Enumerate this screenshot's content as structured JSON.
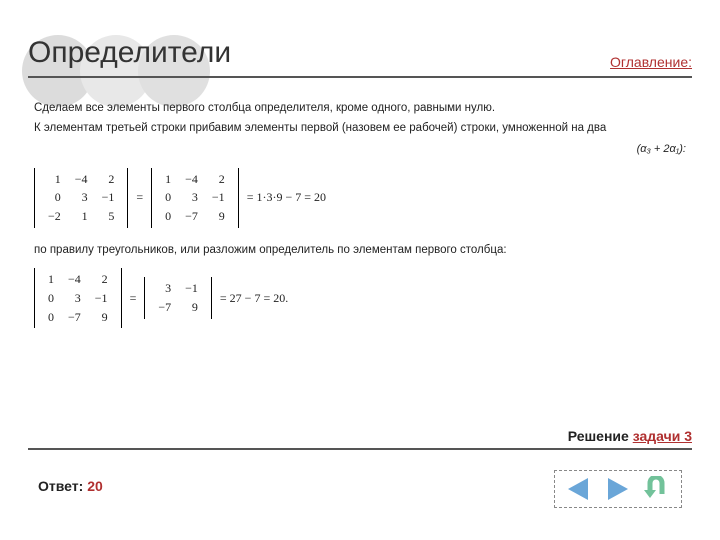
{
  "colors": {
    "accent": "#b03030",
    "rule": "#555555",
    "circle1": "#dcdcdc",
    "circle2": "#e8e8e8",
    "circle3": "#e0e0e0",
    "nav_arrow": "#6aa6d8",
    "nav_uturn": "#72c29a"
  },
  "header": {
    "title": "Определители",
    "toc_label": "Оглавление:"
  },
  "body": {
    "para1": "Сделаем все элементы первого столбца определителя, кроме одного, равными нулю.",
    "para2": "К элементам третьей строки прибавим элементы первой (назовем ее рабочей) строки, умноженной на два",
    "row_op_note": "(α₃ + 2α₁):",
    "det1": [
      [
        "1",
        "−4",
        "2"
      ],
      [
        "0",
        "3",
        "−1"
      ],
      [
        "−2",
        "1",
        "5"
      ]
    ],
    "det2": [
      [
        "1",
        "−4",
        "2"
      ],
      [
        "0",
        "3",
        "−1"
      ],
      [
        "0",
        "−7",
        "9"
      ]
    ],
    "calc1_tail": "= 1·3·9 − 7 = 20",
    "para3": "по правилу треугольников, или разложим определитель по элементам первого столбца:",
    "det3": [
      [
        "1",
        "−4",
        "2"
      ],
      [
        "0",
        "3",
        "−1"
      ],
      [
        "0",
        "−7",
        "9"
      ]
    ],
    "det4": [
      [
        "3",
        "−1"
      ],
      [
        "−7",
        "9"
      ]
    ],
    "calc2_tail": "= 27 − 7 = 20."
  },
  "footer": {
    "solution_label": "Решение ",
    "solution_link": "задачи 3",
    "answer_label": "Ответ: ",
    "answer_value": "20"
  }
}
